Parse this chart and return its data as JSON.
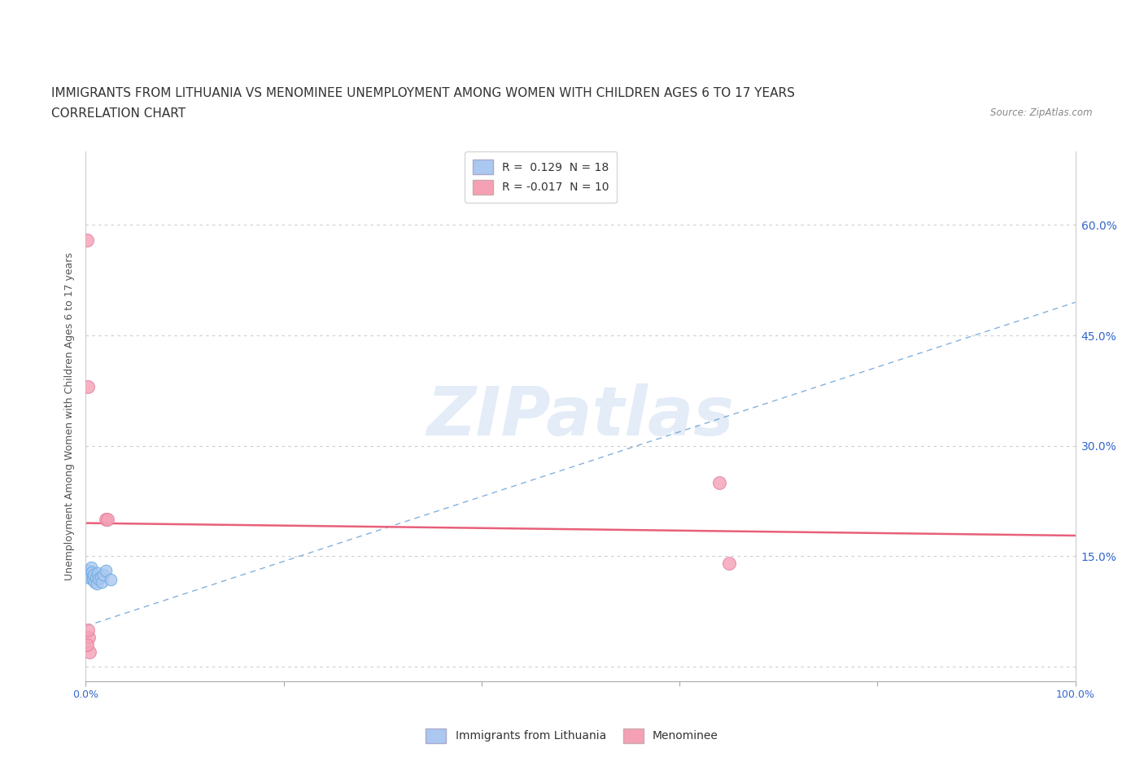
{
  "title_line1": "IMMIGRANTS FROM LITHUANIA VS MENOMINEE UNEMPLOYMENT AMONG WOMEN WITH CHILDREN AGES 6 TO 17 YEARS",
  "title_line2": "CORRELATION CHART",
  "source_text": "Source: ZipAtlas.com",
  "ylabel": "Unemployment Among Women with Children Ages 6 to 17 years",
  "xlim": [
    0,
    1.0
  ],
  "ylim": [
    -0.02,
    0.7
  ],
  "yticks": [
    0.0,
    0.15,
    0.3,
    0.45,
    0.6
  ],
  "ytick_labels": [
    "",
    "15.0%",
    "30.0%",
    "45.0%",
    "60.0%"
  ],
  "right_ytick_labels": [
    "",
    "15.0%",
    "30.0%",
    "45.0%",
    "60.0%"
  ],
  "xticks": [
    0.0,
    0.2,
    0.4,
    0.6,
    0.8,
    1.0
  ],
  "xtick_labels": [
    "0.0%",
    "",
    "",
    "",
    "",
    "100.0%"
  ],
  "blue_scatter_x": [
    0.002,
    0.003,
    0.004,
    0.005,
    0.006,
    0.007,
    0.007,
    0.008,
    0.009,
    0.01,
    0.011,
    0.012,
    0.013,
    0.015,
    0.016,
    0.018,
    0.02,
    0.025
  ],
  "blue_scatter_y": [
    0.125,
    0.13,
    0.12,
    0.135,
    0.128,
    0.122,
    0.118,
    0.125,
    0.115,
    0.12,
    0.113,
    0.127,
    0.119,
    0.122,
    0.115,
    0.125,
    0.13,
    0.118
  ],
  "pink_scatter_x": [
    0.001,
    0.002,
    0.003,
    0.004,
    0.02,
    0.64,
    0.65,
    0.001,
    0.002,
    0.022
  ],
  "pink_scatter_y": [
    0.58,
    0.38,
    0.04,
    0.02,
    0.2,
    0.25,
    0.14,
    0.03,
    0.05,
    0.2
  ],
  "blue_line_x": [
    0.0,
    1.0
  ],
  "blue_line_y": [
    0.055,
    0.495
  ],
  "pink_line_x": [
    0.0,
    1.0
  ],
  "pink_line_y": [
    0.195,
    0.178
  ],
  "blue_scatter_color": "#aac8f0",
  "pink_scatter_color": "#f5a0b5",
  "blue_line_color": "#5090cc",
  "pink_line_color": "#e8607a",
  "blue_marker_edge": "#6aaae0",
  "pink_marker_edge": "#e080a0",
  "legend_blue_label": "R =  0.129  N = 18",
  "legend_pink_label": "R = -0.017  N = 10",
  "grid_color": "#cccccc",
  "watermark_color": "#c8daf0",
  "title_color": "#333333",
  "tick_label_color": "#3366cc",
  "title_fontsize": 11,
  "subtitle_fontsize": 11,
  "axis_label_fontsize": 9,
  "scatter_size_blue": 110,
  "scatter_size_pink": 130
}
